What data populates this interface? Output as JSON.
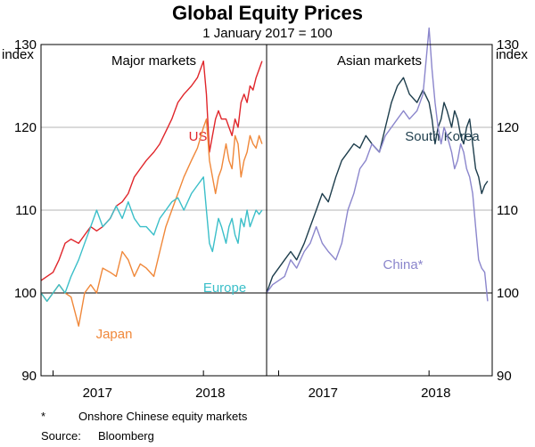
{
  "chart_data": {
    "type": "line",
    "title": "Global Equity Prices",
    "subtitle": "1 January 2017 = 100",
    "yaxis_label": "index",
    "ylim": [
      90,
      130
    ],
    "yticks": [
      90,
      100,
      110,
      120,
      130
    ],
    "x_start": 2016.92,
    "x_end": 2018.42,
    "xtick_labels": [
      "2017",
      "2018"
    ],
    "footnote_marker": "*",
    "footnote": "Onshore Chinese equity markets",
    "source_label": "Source:",
    "source": "Bloomberg",
    "panels": [
      {
        "title": "Major markets",
        "series": [
          {
            "name": "US",
            "color": "#e0262b",
            "x": [
              2016.92,
              2016.96,
              2017.0,
              2017.04,
              2017.08,
              2017.12,
              2017.17,
              2017.21,
              2017.25,
              2017.29,
              2017.33,
              2017.38,
              2017.42,
              2017.46,
              2017.5,
              2017.54,
              2017.58,
              2017.62,
              2017.67,
              2017.71,
              2017.75,
              2017.79,
              2017.83,
              2017.87,
              2017.92,
              2017.96,
              2018.0,
              2018.02,
              2018.04,
              2018.06,
              2018.08,
              2018.1,
              2018.12,
              2018.15,
              2018.17,
              2018.19,
              2018.21,
              2018.23,
              2018.25,
              2018.27,
              2018.29,
              2018.31,
              2018.33,
              2018.35,
              2018.37,
              2018.39
            ],
            "y": [
              101.5,
              102,
              102.5,
              104,
              106,
              106.5,
              106,
              107,
              108,
              107.5,
              108,
              109,
              110.5,
              111,
              112,
              114,
              115,
              116,
              117,
              118,
              119.5,
              121,
              123,
              124,
              125,
              126,
              128,
              124,
              117,
              119,
              121,
              122,
              121,
              121,
              120,
              119,
              121,
              120,
              123,
              124,
              123,
              125,
              124.5,
              126,
              127,
              128
            ]
          },
          {
            "name": "Japan",
            "color": "#f0883a",
            "x": [
              2016.92,
              2016.96,
              2017.0,
              2017.04,
              2017.08,
              2017.12,
              2017.17,
              2017.21,
              2017.25,
              2017.29,
              2017.33,
              2017.38,
              2017.42,
              2017.46,
              2017.5,
              2017.54,
              2017.58,
              2017.62,
              2017.67,
              2017.71,
              2017.75,
              2017.79,
              2017.83,
              2017.87,
              2017.92,
              2017.96,
              2018.0,
              2018.02,
              2018.04,
              2018.06,
              2018.08,
              2018.1,
              2018.12,
              2018.15,
              2018.17,
              2018.19,
              2018.21,
              2018.23,
              2018.25,
              2018.27,
              2018.29,
              2018.31,
              2018.33,
              2018.35,
              2018.37,
              2018.39
            ],
            "y": [
              100,
              99,
              100,
              101,
              100,
              99.5,
              96,
              100,
              101,
              100,
              103,
              102.5,
              102,
              105,
              104,
              102,
              103.5,
              103,
              102,
              105,
              108,
              110,
              112,
              114,
              116,
              117.5,
              120,
              121,
              116,
              114,
              112,
              114,
              115,
              118,
              116,
              115,
              119,
              118,
              114,
              116,
              117,
              119,
              118,
              117.5,
              119,
              118
            ]
          },
          {
            "name": "Europe",
            "color": "#3bbfc9",
            "x": [
              2016.92,
              2016.96,
              2017.0,
              2017.04,
              2017.08,
              2017.12,
              2017.17,
              2017.21,
              2017.25,
              2017.29,
              2017.33,
              2017.38,
              2017.42,
              2017.46,
              2017.5,
              2017.54,
              2017.58,
              2017.62,
              2017.67,
              2017.71,
              2017.75,
              2017.79,
              2017.83,
              2017.87,
              2017.92,
              2017.96,
              2018.0,
              2018.02,
              2018.04,
              2018.06,
              2018.08,
              2018.1,
              2018.12,
              2018.15,
              2018.17,
              2018.19,
              2018.21,
              2018.23,
              2018.25,
              2018.27,
              2018.29,
              2018.31,
              2018.33,
              2018.35,
              2018.37,
              2018.39
            ],
            "y": [
              100,
              99,
              100,
              101,
              100,
              102,
              104,
              106,
              108,
              110,
              108,
              109,
              110.5,
              109,
              111,
              109,
              108,
              108,
              107,
              109,
              110,
              111,
              111.5,
              110,
              112,
              113,
              114,
              110,
              106,
              105,
              107,
              109,
              108,
              106,
              108,
              109,
              107,
              106,
              109,
              108,
              110,
              108,
              109,
              110,
              109.5,
              110
            ]
          }
        ],
        "series_labels": [
          "US",
          "Japan",
          "Europe"
        ]
      },
      {
        "title": "Asian markets",
        "series": [
          {
            "name": "South Korea",
            "color": "#1d3d4c",
            "x": [
              2016.92,
              2016.96,
              2017.0,
              2017.04,
              2017.08,
              2017.12,
              2017.17,
              2017.21,
              2017.25,
              2017.29,
              2017.33,
              2017.38,
              2017.42,
              2017.46,
              2017.5,
              2017.54,
              2017.58,
              2017.62,
              2017.67,
              2017.71,
              2017.75,
              2017.79,
              2017.83,
              2017.87,
              2017.92,
              2017.96,
              2018.0,
              2018.02,
              2018.04,
              2018.06,
              2018.08,
              2018.1,
              2018.12,
              2018.15,
              2018.17,
              2018.19,
              2018.21,
              2018.23,
              2018.25,
              2018.27,
              2018.29,
              2018.31,
              2018.33,
              2018.35,
              2018.37,
              2018.39
            ],
            "y": [
              100,
              102,
              103,
              104,
              105,
              104,
              106,
              108,
              110,
              112,
              111,
              114,
              116,
              117,
              118,
              117.5,
              119,
              118,
              117,
              120,
              123,
              125,
              126,
              124,
              123,
              124.5,
              123,
              121,
              118,
              120,
              121,
              123,
              122,
              120,
              122,
              121,
              119,
              118,
              120,
              121,
              118,
              115,
              114,
              112,
              113,
              113.5
            ]
          },
          {
            "name": "China*",
            "color": "#8b86cc",
            "x": [
              2016.92,
              2016.96,
              2017.0,
              2017.04,
              2017.08,
              2017.12,
              2017.17,
              2017.21,
              2017.25,
              2017.29,
              2017.33,
              2017.38,
              2017.42,
              2017.46,
              2017.5,
              2017.54,
              2017.58,
              2017.62,
              2017.67,
              2017.71,
              2017.75,
              2017.79,
              2017.83,
              2017.87,
              2017.92,
              2017.96,
              2018.0,
              2018.02,
              2018.04,
              2018.06,
              2018.08,
              2018.1,
              2018.12,
              2018.15,
              2018.17,
              2018.19,
              2018.21,
              2018.23,
              2018.25,
              2018.27,
              2018.29,
              2018.31,
              2018.33,
              2018.35,
              2018.37,
              2018.39
            ],
            "y": [
              100,
              101,
              101.5,
              102,
              104,
              103,
              105,
              106,
              108,
              106,
              105,
              104,
              106,
              110,
              112,
              115,
              116,
              118,
              117,
              119,
              120,
              121,
              122,
              121,
              122,
              124,
              132,
              127,
              123,
              120,
              118,
              120,
              119,
              117,
              115,
              116,
              118,
              117,
              115,
              114,
              112,
              108,
              104,
              103,
              102.5,
              99
            ]
          }
        ],
        "series_labels": [
          "South Korea",
          "China*"
        ]
      }
    ]
  }
}
